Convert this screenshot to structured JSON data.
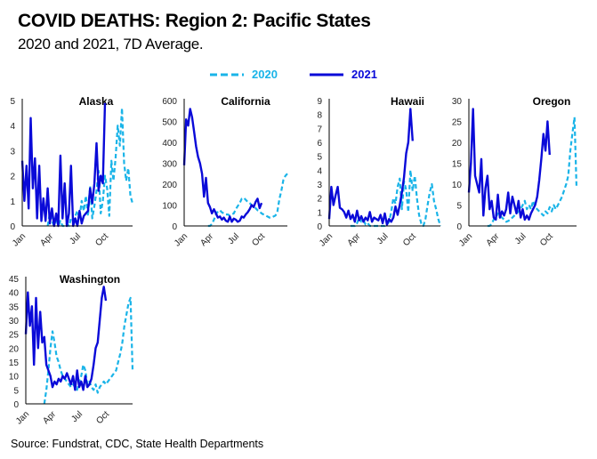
{
  "title": "COVID DEATHS: Region 2: Pacific States",
  "subtitle": "2020 and 2021, 7D Average.",
  "legend": [
    {
      "label": "2020",
      "color": "#1AB4E8",
      "style": "dashed"
    },
    {
      "label": "2021",
      "color": "#0A0AD8",
      "style": "solid"
    }
  ],
  "source": "Source: Fundstrat, CDC, State Health Departments",
  "chart_data": [
    {
      "type": "line",
      "title": "Alaska",
      "x_ticks": [
        "Jan",
        "Apr",
        "Jul",
        "Oct"
      ],
      "y_ticks": [
        0,
        1,
        2,
        3,
        4,
        5
      ],
      "ylim": [
        0,
        5
      ],
      "xlim_weeks": [
        0,
        52
      ],
      "series": [
        {
          "name": "2020",
          "x": [
            12,
            13,
            14,
            15,
            16,
            17,
            18,
            19,
            20,
            21,
            22,
            23,
            24,
            25,
            26,
            27,
            28,
            29,
            30,
            31,
            32,
            33,
            34,
            35,
            36,
            37,
            38,
            39,
            40,
            41,
            42,
            43,
            44,
            45,
            46,
            47,
            48,
            49,
            50,
            51,
            52
          ],
          "values": [
            0,
            0.5,
            0.2,
            0,
            0.3,
            0,
            0.2,
            0,
            0,
            0.1,
            0,
            0.3,
            0.2,
            0.4,
            0.6,
            0.3,
            1.0,
            0.6,
            1.2,
            0.4,
            1.6,
            0.3,
            0.8,
            1.4,
            2.2,
            0.5,
            1.0,
            2.0,
            1.5,
            0.4,
            2.6,
            1.8,
            2.7,
            4.0,
            3.2,
            4.7,
            2.5,
            1.8,
            2.3,
            1.2,
            0.9
          ]
        },
        {
          "name": "2021",
          "x": [
            0,
            1,
            2,
            3,
            4,
            5,
            6,
            7,
            8,
            9,
            10,
            11,
            12,
            13,
            14,
            15,
            16,
            17,
            18,
            19,
            20,
            21,
            22,
            23,
            24,
            25,
            26,
            27,
            28,
            29,
            30,
            31,
            32,
            33,
            34,
            35,
            36,
            37,
            38,
            39
          ],
          "values": [
            2.6,
            1.0,
            2.4,
            0.7,
            4.3,
            1.5,
            2.7,
            0.3,
            2.4,
            0.2,
            1.1,
            0.2,
            1.5,
            0.1,
            0.7,
            0,
            0.5,
            0,
            2.8,
            0.3,
            1.7,
            0,
            0.5,
            2.4,
            0,
            0.3,
            0,
            0.6,
            0.1,
            0.4,
            0.5,
            0.6,
            1.5,
            0.9,
            1.7,
            3.3,
            1.4,
            2.0,
            1.7,
            4.9
          ]
        }
      ]
    },
    {
      "type": "line",
      "title": "California",
      "x_ticks": [
        "Jan",
        "Apr",
        "Jul",
        "Oct"
      ],
      "y_ticks": [
        0,
        100,
        200,
        300,
        400,
        500,
        600
      ],
      "ylim": [
        0,
        600
      ],
      "xlim_weeks": [
        0,
        52
      ],
      "series": [
        {
          "name": "2020",
          "x": [
            12,
            13,
            14,
            15,
            16,
            17,
            18,
            19,
            20,
            21,
            22,
            23,
            24,
            25,
            26,
            27,
            28,
            29,
            30,
            31,
            32,
            33,
            34,
            35,
            36,
            37,
            38,
            39,
            40,
            41,
            42,
            43,
            44,
            45,
            46,
            47,
            48,
            49,
            50,
            51,
            52
          ],
          "values": [
            0,
            0,
            10,
            30,
            55,
            70,
            75,
            65,
            60,
            55,
            55,
            50,
            55,
            60,
            80,
            95,
            110,
            130,
            135,
            125,
            115,
            110,
            100,
            95,
            85,
            75,
            70,
            60,
            55,
            50,
            45,
            40,
            40,
            45,
            50,
            70,
            130,
            170,
            220,
            240,
            250
          ]
        },
        {
          "name": "2021",
          "x": [
            0,
            1,
            2,
            3,
            4,
            5,
            6,
            7,
            8,
            9,
            10,
            11,
            12,
            13,
            14,
            15,
            16,
            17,
            18,
            19,
            20,
            21,
            22,
            23,
            24,
            25,
            26,
            27,
            28,
            29,
            30,
            31,
            32,
            33,
            34,
            35,
            36,
            37,
            38,
            39
          ],
          "values": [
            290,
            510,
            480,
            560,
            520,
            450,
            380,
            330,
            300,
            250,
            140,
            230,
            110,
            90,
            60,
            80,
            60,
            40,
            45,
            30,
            40,
            25,
            20,
            45,
            20,
            35,
            30,
            20,
            25,
            45,
            40,
            55,
            65,
            80,
            100,
            90,
            115,
            130,
            85,
            110
          ]
        }
      ]
    },
    {
      "type": "line",
      "title": "Hawaii",
      "x_ticks": [
        "Jan",
        "Apr",
        "Jul",
        "Oct"
      ],
      "y_ticks": [
        0,
        1,
        2,
        3,
        4,
        5,
        6,
        7,
        8,
        9
      ],
      "ylim": [
        0,
        9
      ],
      "xlim_weeks": [
        0,
        52
      ],
      "series": [
        {
          "name": "2020",
          "x": [
            10,
            11,
            12,
            13,
            14,
            15,
            16,
            17,
            18,
            19,
            20,
            21,
            22,
            23,
            24,
            25,
            26,
            27,
            28,
            29,
            30,
            31,
            32,
            33,
            34,
            35,
            36,
            37,
            38,
            39,
            40,
            41,
            42,
            43,
            44,
            45,
            46,
            47,
            48,
            49,
            50,
            51,
            52
          ],
          "values": [
            0,
            0,
            0,
            0.2,
            0.6,
            0.3,
            0.4,
            0.1,
            0.2,
            0,
            0,
            0,
            0,
            0,
            0,
            0,
            0,
            0.1,
            0.3,
            1.0,
            2.0,
            1.6,
            2.8,
            3.4,
            1.2,
            3.2,
            2.6,
            1.0,
            4.0,
            2.5,
            3.6,
            2.0,
            0.8,
            0.2,
            0,
            0.5,
            1.5,
            2.4,
            3.0,
            1.8,
            1.2,
            0.5,
            0
          ]
        },
        {
          "name": "2021",
          "x": [
            0,
            1,
            2,
            3,
            4,
            5,
            6,
            7,
            8,
            9,
            10,
            11,
            12,
            13,
            14,
            15,
            16,
            17,
            18,
            19,
            20,
            21,
            22,
            23,
            24,
            25,
            26,
            27,
            28,
            29,
            30,
            31,
            32,
            33,
            34,
            35,
            36,
            37,
            38,
            39
          ],
          "values": [
            0.5,
            2.8,
            1.5,
            2.2,
            2.8,
            1.3,
            1.2,
            1.0,
            0.6,
            1.1,
            0.5,
            0.8,
            0.3,
            1.1,
            0.4,
            0.7,
            0.3,
            0.6,
            0.4,
            1.0,
            0.3,
            0.6,
            0.5,
            0.4,
            0.8,
            0.2,
            0.9,
            0.1,
            0.5,
            0.3,
            0.6,
            1.4,
            0.8,
            1.5,
            2.4,
            3.5,
            5.2,
            6.0,
            8.4,
            6.1
          ]
        }
      ]
    },
    {
      "type": "line",
      "title": "Oregon",
      "x_ticks": [
        "Jan",
        "Apr",
        "Jul",
        "Oct"
      ],
      "y_ticks": [
        0,
        5,
        10,
        15,
        20,
        25,
        30
      ],
      "ylim": [
        0,
        30
      ],
      "xlim_weeks": [
        0,
        52
      ],
      "series": [
        {
          "name": "2020",
          "x": [
            9,
            10,
            11,
            12,
            13,
            14,
            15,
            16,
            17,
            18,
            19,
            20,
            21,
            22,
            23,
            24,
            25,
            26,
            27,
            28,
            29,
            30,
            31,
            32,
            33,
            34,
            35,
            36,
            37,
            38,
            39,
            40,
            41,
            42,
            43,
            44,
            45,
            46,
            47,
            48,
            49,
            50,
            51,
            52
          ],
          "values": [
            0,
            0,
            0.5,
            1.5,
            2,
            3,
            2.5,
            2,
            1.5,
            1,
            1.2,
            1.5,
            2,
            2.5,
            3,
            3.5,
            4,
            5,
            6,
            4,
            5,
            4,
            6,
            4.5,
            4,
            3.5,
            3,
            2.5,
            3.5,
            3,
            4.5,
            3.5,
            5,
            4,
            5,
            6,
            7,
            8.5,
            10,
            12,
            18,
            22,
            26,
            9
          ]
        },
        {
          "name": "2021",
          "x": [
            0,
            1,
            2,
            3,
            4,
            5,
            6,
            7,
            8,
            9,
            10,
            11,
            12,
            13,
            14,
            15,
            16,
            17,
            18,
            19,
            20,
            21,
            22,
            23,
            24,
            25,
            26,
            27,
            28,
            29,
            30,
            31,
            32,
            33,
            34,
            35,
            36,
            37,
            38,
            39
          ],
          "values": [
            8,
            15,
            28,
            12,
            10,
            8,
            16,
            2.5,
            9,
            12,
            4,
            6,
            2,
            1.5,
            7.5,
            2,
            3.5,
            2.5,
            4,
            8,
            3,
            7,
            5,
            3,
            6,
            2,
            4,
            1.5,
            2.5,
            1.5,
            3,
            4,
            5,
            7,
            11,
            16,
            22,
            18,
            25,
            17
          ]
        }
      ]
    },
    {
      "type": "line",
      "title": "Washington",
      "x_ticks": [
        "Jan",
        "Apr",
        "Jul",
        "Oct"
      ],
      "y_ticks": [
        0,
        5,
        10,
        15,
        20,
        25,
        30,
        35,
        40,
        45
      ],
      "ylim": [
        0,
        45
      ],
      "xlim_weeks": [
        0,
        52
      ],
      "series": [
        {
          "name": "2020",
          "x": [
            9,
            10,
            11,
            12,
            13,
            14,
            15,
            16,
            17,
            18,
            19,
            20,
            21,
            22,
            23,
            24,
            25,
            26,
            27,
            28,
            29,
            30,
            31,
            32,
            33,
            34,
            35,
            36,
            37,
            38,
            39,
            40,
            41,
            42,
            43,
            44,
            45,
            46,
            47,
            48,
            49,
            50,
            51,
            52
          ],
          "values": [
            0,
            5,
            12,
            20,
            26,
            22,
            17,
            15,
            12,
            10,
            9,
            8,
            7,
            6,
            7,
            6,
            5,
            8,
            10,
            14,
            12,
            7,
            8,
            6,
            5,
            7,
            4,
            6,
            7,
            8,
            7,
            8,
            9,
            10,
            11,
            12,
            15,
            18,
            22,
            28,
            32,
            36,
            38,
            12
          ]
        },
        {
          "name": "2021",
          "x": [
            0,
            1,
            2,
            3,
            4,
            5,
            6,
            7,
            8,
            9,
            10,
            11,
            12,
            13,
            14,
            15,
            16,
            17,
            18,
            19,
            20,
            21,
            22,
            23,
            24,
            25,
            26,
            27,
            28,
            29,
            30,
            31,
            32,
            33,
            34,
            35,
            36,
            37,
            38,
            39
          ],
          "values": [
            25,
            40,
            28,
            35,
            14,
            38,
            20,
            33,
            22,
            24,
            14,
            12,
            10,
            6,
            8,
            7,
            9,
            8,
            10,
            9,
            11,
            9,
            7,
            10,
            5,
            12,
            6,
            8,
            5,
            10,
            6,
            7,
            9,
            14,
            20,
            22,
            30,
            38,
            42,
            37
          ]
        }
      ]
    }
  ]
}
